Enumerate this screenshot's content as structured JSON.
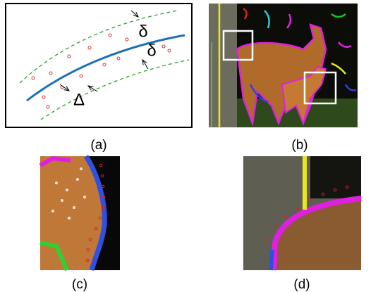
{
  "panels": [
    {
      "label": "(a)",
      "annotations": [
        "δ",
        "δ",
        "Δ"
      ]
    },
    {
      "label": "(b)"
    },
    {
      "label": "(c)"
    },
    {
      "label": "(d)"
    }
  ]
}
